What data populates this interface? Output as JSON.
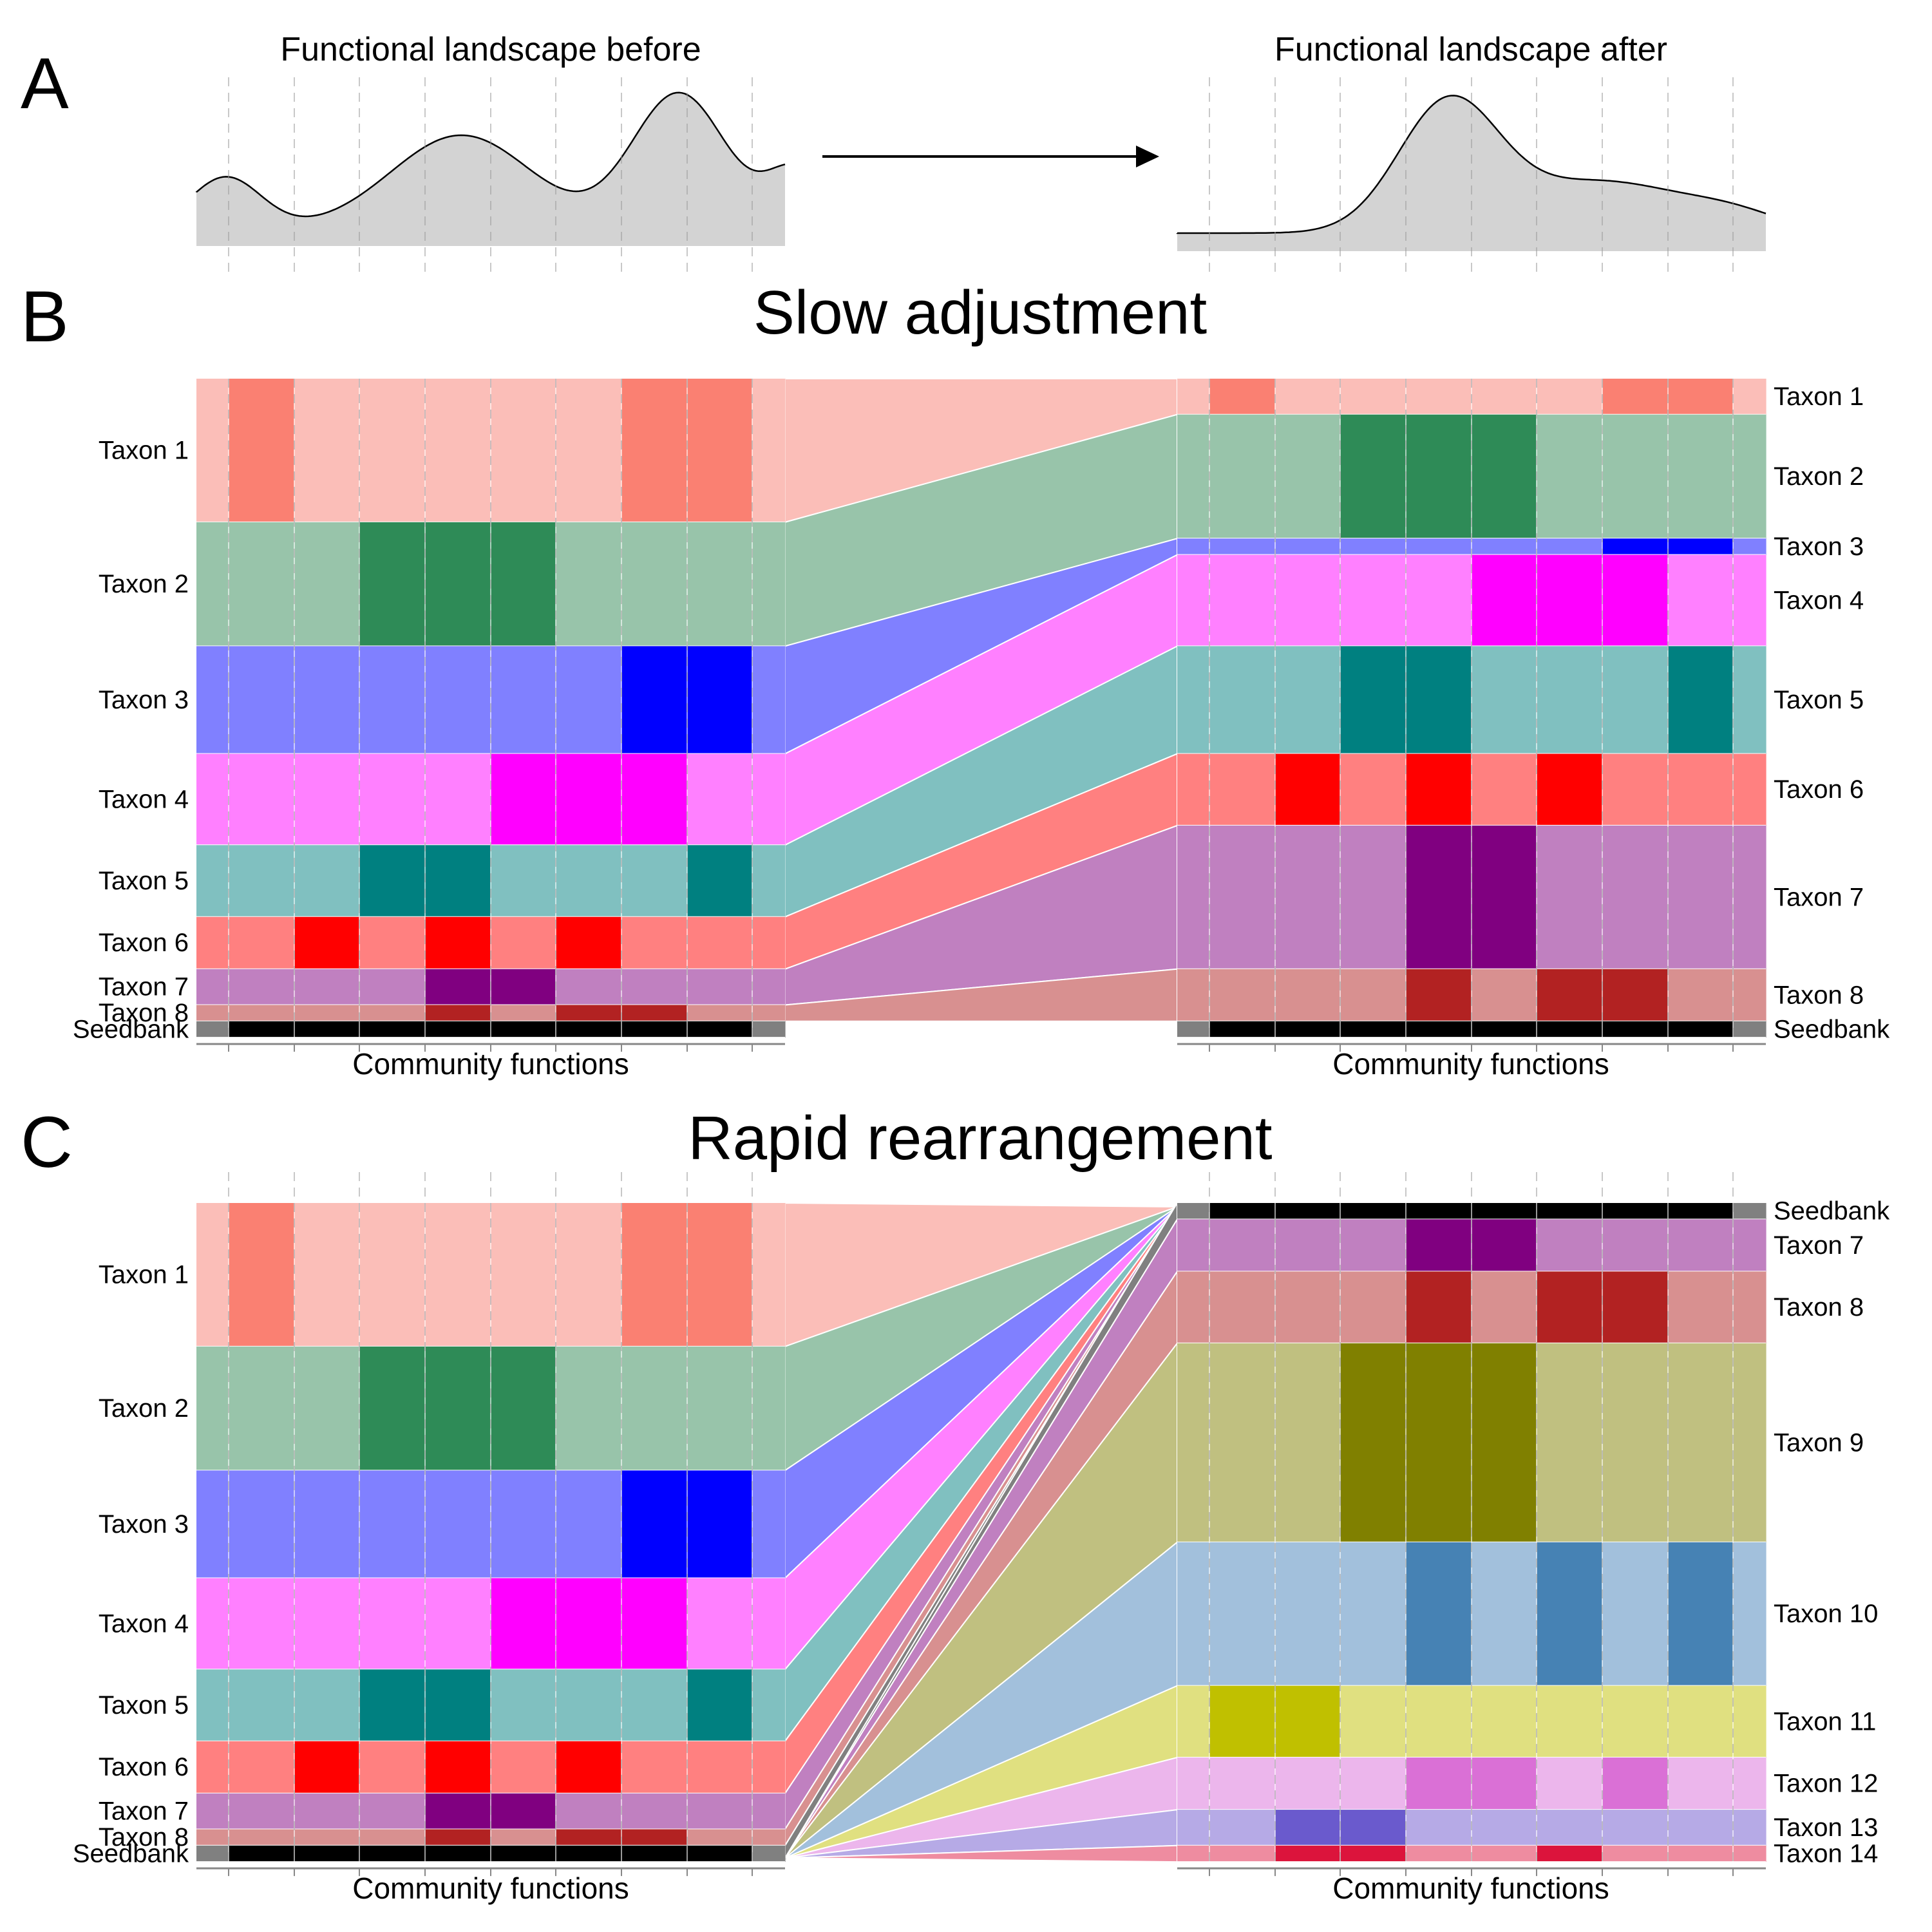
{
  "panel_a": {
    "letter": "A",
    "title_before": "Functional landscape before",
    "title_after": "Functional landscape after"
  },
  "panel_b": {
    "letter": "B",
    "title": "Slow adjustment",
    "axis_label_left": "Community functions",
    "axis_label_right": "Community functions"
  },
  "panel_c": {
    "letter": "C",
    "title": "Rapid rearrangement",
    "axis_label_left": "Community functions",
    "axis_label_right": "Community functions"
  },
  "colors": {
    "seedbank_light": "#808080",
    "seedbank_dark": "#000000",
    "landscape_fill": "#d3d3d3",
    "Taxon 1": [
      "#fbbeb8",
      "#fa8072"
    ],
    "Taxon 2": [
      "#98c4aa",
      "#2e8b57"
    ],
    "Taxon 3": [
      "#8080ff",
      "#0000ff"
    ],
    "Taxon 4": [
      "#ff80ff",
      "#ff00ff"
    ],
    "Taxon 5": [
      "#80c0c0",
      "#008080"
    ],
    "Taxon 6": [
      "#ff8080",
      "#ff0000"
    ],
    "Taxon 7": [
      "#c080c0",
      "#800080"
    ],
    "Taxon 8": [
      "#d89090",
      "#b22222"
    ],
    "Taxon 9": [
      "#c0c080",
      "#808000"
    ],
    "Taxon 10": [
      "#a2c0dc",
      "#4682b4"
    ],
    "Taxon 11": [
      "#e0e080",
      "#c0c000"
    ],
    "Taxon 12": [
      "#ecb6ec",
      "#da70d6"
    ],
    "Taxon 13": [
      "#b6aae6",
      "#6a5acd"
    ],
    "Taxon 14": [
      "#ee8ca0",
      "#dc143c"
    ]
  },
  "left_community": [
    {
      "label": "Taxon 1",
      "height": 2.2,
      "dark": [
        0,
        6,
        7
      ]
    },
    {
      "label": "Taxon 2",
      "height": 1.9,
      "dark": [
        2,
        3,
        4
      ]
    },
    {
      "label": "Taxon 3",
      "height": 1.65,
      "dark": [
        6,
        7
      ]
    },
    {
      "label": "Taxon 4",
      "height": 1.4,
      "dark": [
        4,
        5,
        6
      ]
    },
    {
      "label": "Taxon 5",
      "height": 1.1,
      "dark": [
        2,
        3,
        7
      ]
    },
    {
      "label": "Taxon 6",
      "height": 0.8,
      "dark": [
        1,
        3,
        5
      ]
    },
    {
      "label": "Taxon 7",
      "height": 0.55,
      "dark": [
        3,
        4
      ]
    },
    {
      "label": "Taxon 8",
      "height": 0.25,
      "dark": [
        3,
        5,
        6
      ]
    },
    {
      "label": "Seedbank",
      "height": 0.25,
      "seedbank": true
    }
  ],
  "b_right_community": [
    {
      "label": "Taxon 1",
      "height": 0.55,
      "dark": [
        0,
        6,
        7
      ]
    },
    {
      "label": "Taxon 2",
      "height": 1.9,
      "dark": [
        2,
        3,
        4
      ]
    },
    {
      "label": "Taxon 3",
      "height": 0.25,
      "dark": [
        6,
        7
      ]
    },
    {
      "label": "Taxon 4",
      "height": 1.4,
      "dark": [
        4,
        5,
        6
      ]
    },
    {
      "label": "Taxon 5",
      "height": 1.65,
      "dark": [
        2,
        3,
        7
      ]
    },
    {
      "label": "Taxon 6",
      "height": 1.1,
      "dark": [
        1,
        3,
        5
      ]
    },
    {
      "label": "Taxon 7",
      "height": 2.2,
      "dark": [
        3,
        4
      ]
    },
    {
      "label": "Taxon 8",
      "height": 0.8,
      "dark": [
        3,
        5,
        6
      ]
    },
    {
      "label": "Seedbank",
      "height": 0.25,
      "seedbank": true
    }
  ],
  "c_right_community": [
    {
      "label": "Seedbank",
      "height": 0.25,
      "seedbank": true
    },
    {
      "label": "Taxon 7",
      "height": 0.8,
      "dark": [
        3,
        4
      ]
    },
    {
      "label": "Taxon 8",
      "height": 1.1,
      "dark": [
        3,
        5,
        6
      ]
    },
    {
      "label": "Taxon 9",
      "height": 3.05,
      "dark": [
        2,
        3,
        4
      ]
    },
    {
      "label": "Taxon 10",
      "height": 2.2,
      "dark": [
        3,
        5,
        7
      ]
    },
    {
      "label": "Taxon 11",
      "height": 1.1,
      "dark": [
        0,
        1
      ]
    },
    {
      "label": "Taxon 12",
      "height": 0.8,
      "dark": [
        3,
        4,
        6
      ]
    },
    {
      "label": "Taxon 13",
      "height": 0.55,
      "dark": [
        1,
        2
      ]
    },
    {
      "label": "Taxon 14",
      "height": 0.25,
      "dark": [
        1,
        2,
        5
      ]
    }
  ]
}
